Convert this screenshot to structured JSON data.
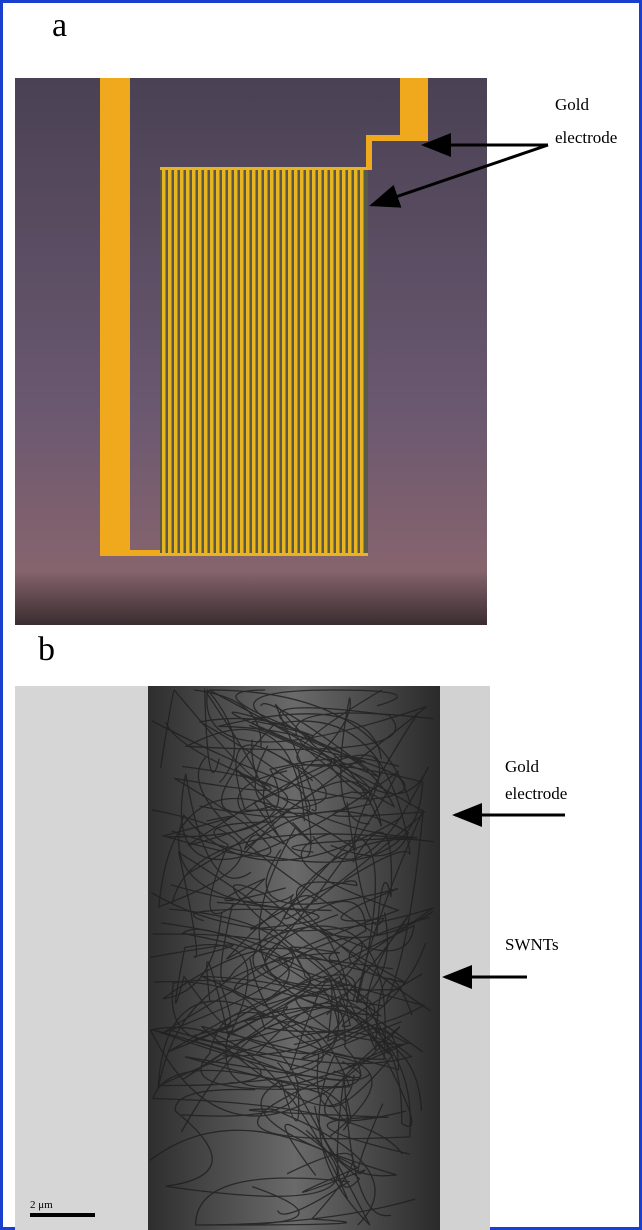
{
  "panels": [
    {
      "label": "a",
      "annotations": [
        {
          "lines": [
            "Gold",
            "electrode"
          ]
        }
      ]
    },
    {
      "label": "b",
      "annotations": [
        {
          "lines": [
            "Gold",
            "electrode"
          ]
        },
        {
          "lines": [
            "SWNTs"
          ]
        }
      ],
      "scale_bar": "2 μm"
    }
  ]
}
